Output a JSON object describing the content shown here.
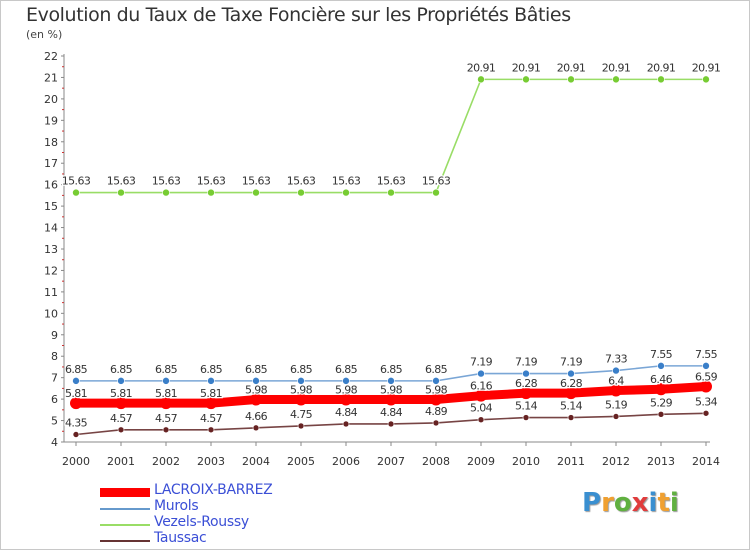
{
  "chart_data": {
    "type": "line",
    "title": "Evolution du Taux de Taxe Foncière sur les Propriétés Bâties",
    "subtitle": "(en %)",
    "xlabel": "",
    "ylabel": "",
    "ylim": [
      4,
      22
    ],
    "yticks": [
      "4",
      "5",
      "6",
      "7",
      "8",
      "9",
      "10",
      "11",
      "12",
      "13",
      "14",
      "15",
      "16",
      "17",
      "18",
      "19",
      "20",
      "21",
      "22"
    ],
    "categories": [
      "2000",
      "2001",
      "2002",
      "2003",
      "2004",
      "2005",
      "2006",
      "2007",
      "2008",
      "2009",
      "2010",
      "2011",
      "2012",
      "2013",
      "2014"
    ],
    "grid": false,
    "legend_position": "bottom-left",
    "series": [
      {
        "name": "LACROIX-BARREZ",
        "color": "#ff0000",
        "values": [
          5.81,
          5.81,
          5.81,
          5.81,
          5.98,
          5.98,
          5.98,
          5.98,
          5.98,
          6.16,
          6.28,
          6.28,
          6.4,
          6.46,
          6.59
        ],
        "labels": [
          "5.81",
          "5.81",
          "5.81",
          "5.81",
          "5.98",
          "5.98",
          "5.98",
          "5.98",
          "5.98",
          "6.16",
          "6.28",
          "6.28",
          "6.4",
          "6.46",
          "6.59"
        ]
      },
      {
        "name": "Murols",
        "color": "#6699cc",
        "values": [
          6.85,
          6.85,
          6.85,
          6.85,
          6.85,
          6.85,
          6.85,
          6.85,
          6.85,
          7.19,
          7.19,
          7.19,
          7.33,
          7.55,
          7.55
        ],
        "labels": [
          "6.85",
          "6.85",
          "6.85",
          "6.85",
          "6.85",
          "6.85",
          "6.85",
          "6.85",
          "6.85",
          "7.19",
          "7.19",
          "7.19",
          "7.33",
          "7.55",
          "7.55"
        ]
      },
      {
        "name": "Vezels-Roussy",
        "color": "#99dd66",
        "values": [
          15.63,
          15.63,
          15.63,
          15.63,
          15.63,
          15.63,
          15.63,
          15.63,
          15.63,
          20.91,
          20.91,
          20.91,
          20.91,
          20.91,
          20.91
        ],
        "labels": [
          "15.63",
          "15.63",
          "15.63",
          "15.63",
          "15.63",
          "15.63",
          "15.63",
          "15.63",
          "15.63",
          "20.91",
          "20.91",
          "20.91",
          "20.91",
          "20.91",
          "20.91"
        ]
      },
      {
        "name": "Taussac",
        "color": "#663333",
        "values": [
          4.35,
          4.57,
          4.57,
          4.57,
          4.66,
          4.75,
          4.84,
          4.84,
          4.89,
          5.04,
          5.14,
          5.14,
          5.19,
          5.29,
          5.34
        ],
        "labels": [
          "4.35",
          "4.57",
          "4.57",
          "4.57",
          "4.66",
          "4.75",
          "4.84",
          "4.84",
          "4.89",
          "5.04",
          "5.14",
          "5.14",
          "5.19",
          "5.29",
          "5.34"
        ]
      }
    ]
  },
  "logo": {
    "letters": [
      "P",
      "r",
      "o",
      "x",
      "i",
      "t",
      "i"
    ]
  }
}
